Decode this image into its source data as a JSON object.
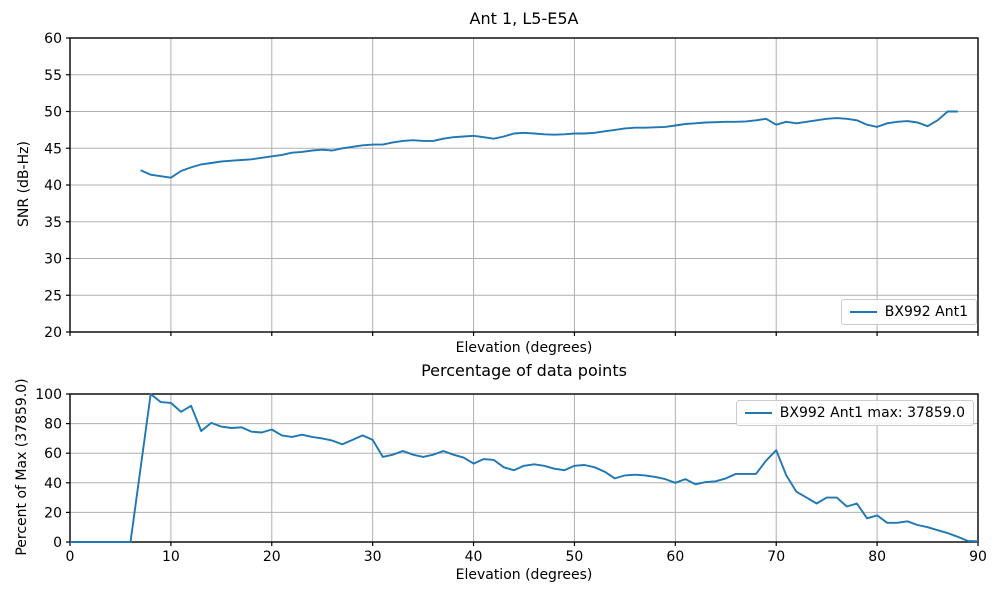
{
  "figure": {
    "background": "#ffffff",
    "line_color": "#1f77b4",
    "grid_color": "#b0b0b0",
    "spine_color": "#000000",
    "legend_border_color": "#cccccc"
  },
  "chart_data": [
    {
      "type": "line",
      "title": "Ant 1, L5-E5A",
      "xlabel": "Elevation (degrees)",
      "ylabel": "SNR (dB-Hz)",
      "legend_label": "BX992 Ant1",
      "legend_position": "lower right",
      "grid": true,
      "xlim": [
        0,
        90
      ],
      "ylim": [
        20,
        60
      ],
      "xticks": [
        0,
        10,
        20,
        30,
        40,
        50,
        60,
        70,
        80,
        90
      ],
      "yticks": [
        20,
        25,
        30,
        35,
        40,
        45,
        50,
        55,
        60
      ],
      "show_xticklabels": false,
      "series": [
        {
          "name": "BX992 Ant1",
          "color": "#1f77b4",
          "x": [
            7,
            8,
            9,
            10,
            11,
            12,
            13,
            14,
            15,
            16,
            17,
            18,
            19,
            20,
            21,
            22,
            23,
            24,
            25,
            26,
            27,
            28,
            29,
            30,
            31,
            32,
            33,
            34,
            35,
            36,
            37,
            38,
            39,
            40,
            41,
            42,
            43,
            44,
            45,
            46,
            47,
            48,
            49,
            50,
            51,
            52,
            53,
            54,
            55,
            56,
            57,
            58,
            59,
            60,
            61,
            62,
            63,
            64,
            65,
            66,
            67,
            68,
            69,
            70,
            71,
            72,
            73,
            74,
            75,
            76,
            77,
            78,
            79,
            80,
            81,
            82,
            83,
            84,
            85,
            86,
            87,
            88
          ],
          "y": [
            42.0,
            41.4,
            41.2,
            41.0,
            41.9,
            42.4,
            42.8,
            43.0,
            43.2,
            43.3,
            43.4,
            43.5,
            43.7,
            43.9,
            44.1,
            44.4,
            44.5,
            44.7,
            44.8,
            44.7,
            45.0,
            45.2,
            45.4,
            45.5,
            45.5,
            45.8,
            46.0,
            46.1,
            46.0,
            46.0,
            46.3,
            46.5,
            46.6,
            46.7,
            46.5,
            46.3,
            46.6,
            47.0,
            47.1,
            47.0,
            46.9,
            46.85,
            46.9,
            47.0,
            47.0,
            47.1,
            47.3,
            47.5,
            47.7,
            47.8,
            47.8,
            47.85,
            47.9,
            48.1,
            48.3,
            48.4,
            48.5,
            48.55,
            48.6,
            48.6,
            48.65,
            48.8,
            49.0,
            48.2,
            48.6,
            48.4,
            48.6,
            48.8,
            49.0,
            49.1,
            49.0,
            48.8,
            48.2,
            47.9,
            48.4,
            48.6,
            48.7,
            48.5,
            48.0,
            48.8,
            50.0,
            50.0
          ]
        }
      ]
    },
    {
      "type": "line",
      "title": "Percentage of data points",
      "xlabel": "Elevation (degrees)",
      "ylabel": "Percent of Max (37859.0)",
      "legend_label": "BX992 Ant1 max: 37859.0",
      "legend_position": "upper right",
      "grid": true,
      "xlim": [
        0,
        90
      ],
      "ylim": [
        0,
        100
      ],
      "xticks": [
        0,
        10,
        20,
        30,
        40,
        50,
        60,
        70,
        80,
        90
      ],
      "yticks": [
        0,
        20,
        40,
        60,
        80,
        100
      ],
      "show_xticklabels": true,
      "series": [
        {
          "name": "BX992 Ant1",
          "color": "#1f77b4",
          "x": [
            0,
            1,
            2,
            3,
            4,
            5,
            6,
            7,
            8,
            9,
            10,
            11,
            12,
            13,
            14,
            15,
            16,
            17,
            18,
            19,
            20,
            21,
            22,
            23,
            24,
            25,
            26,
            27,
            28,
            29,
            30,
            31,
            32,
            33,
            34,
            35,
            36,
            37,
            38,
            39,
            40,
            41,
            42,
            43,
            44,
            45,
            46,
            47,
            48,
            49,
            50,
            51,
            52,
            53,
            54,
            55,
            56,
            57,
            58,
            59,
            60,
            61,
            62,
            63,
            64,
            65,
            66,
            67,
            68,
            69,
            70,
            71,
            72,
            73,
            74,
            75,
            76,
            77,
            78,
            79,
            80,
            81,
            82,
            83,
            84,
            85,
            86,
            87,
            88,
            89,
            90
          ],
          "y": [
            0,
            0,
            0,
            0,
            0,
            0,
            0,
            50,
            100,
            94.5,
            94,
            88,
            92,
            75,
            80.5,
            78,
            77,
            77.5,
            74.5,
            74,
            76,
            72,
            71,
            72.5,
            71,
            70,
            68.5,
            66,
            69,
            72,
            69,
            57.5,
            59,
            61.5,
            59,
            57.5,
            59,
            61.5,
            59,
            57,
            53,
            56,
            55.5,
            50.5,
            48.5,
            51.5,
            52.5,
            51.5,
            49.5,
            48.5,
            51.5,
            52,
            50.5,
            47.5,
            43,
            45,
            45.5,
            45,
            44,
            42.5,
            40,
            42.5,
            39,
            40.5,
            41,
            43,
            46,
            46,
            46,
            55,
            62,
            45,
            34,
            30,
            26,
            30,
            30,
            24,
            26,
            16,
            18,
            13,
            13,
            14,
            11.5,
            10,
            8,
            6,
            3.5,
            0.7,
            0.5
          ]
        }
      ]
    }
  ]
}
